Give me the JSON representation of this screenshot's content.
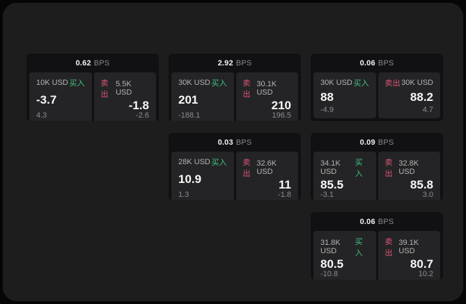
{
  "labels": {
    "bps_unit": "BPS",
    "buy": "买入",
    "sell": "卖出"
  },
  "colors": {
    "buy_green": "#3ec57e",
    "sell_red": "#dc5576",
    "panel_bg": "#1d1d1e",
    "card_bg": "#111113",
    "tile_bg": "#242426"
  },
  "cards": [
    {
      "bps": "0.62",
      "buy": {
        "amount": "10K USD",
        "value": "-3.7",
        "delta": "4.3"
      },
      "sell": {
        "amount": "5.5K USD",
        "value": "-1.8",
        "delta": "-2.6"
      }
    },
    {
      "bps": "2.92",
      "buy": {
        "amount": "30K USD",
        "value": "201",
        "delta": "-188.1"
      },
      "sell": {
        "amount": "30.1K USD",
        "value": "210",
        "delta": "196.5"
      }
    },
    {
      "bps": "0.06",
      "buy": {
        "amount": "30K USD",
        "value": "88",
        "delta": "-4.9"
      },
      "sell": {
        "amount": "30K USD",
        "value": "88.2",
        "delta": "4.7"
      }
    },
    {
      "bps": "0.03",
      "buy": {
        "amount": "28K USD",
        "value": "10.9",
        "delta": "1.3"
      },
      "sell": {
        "amount": "32.6K USD",
        "value": "11",
        "delta": "-1.8"
      }
    },
    {
      "bps": "0.09",
      "buy": {
        "amount": "34.1K USD",
        "value": "85.5",
        "delta": "-3.1"
      },
      "sell": {
        "amount": "32.8K USD",
        "value": "85.8",
        "delta": "3.0"
      }
    },
    {
      "bps": "0.06",
      "buy": {
        "amount": "31.8K USD",
        "value": "80.5",
        "delta": "-10.8"
      },
      "sell": {
        "amount": "39.1K USD",
        "value": "80.7",
        "delta": "10.2"
      }
    }
  ]
}
